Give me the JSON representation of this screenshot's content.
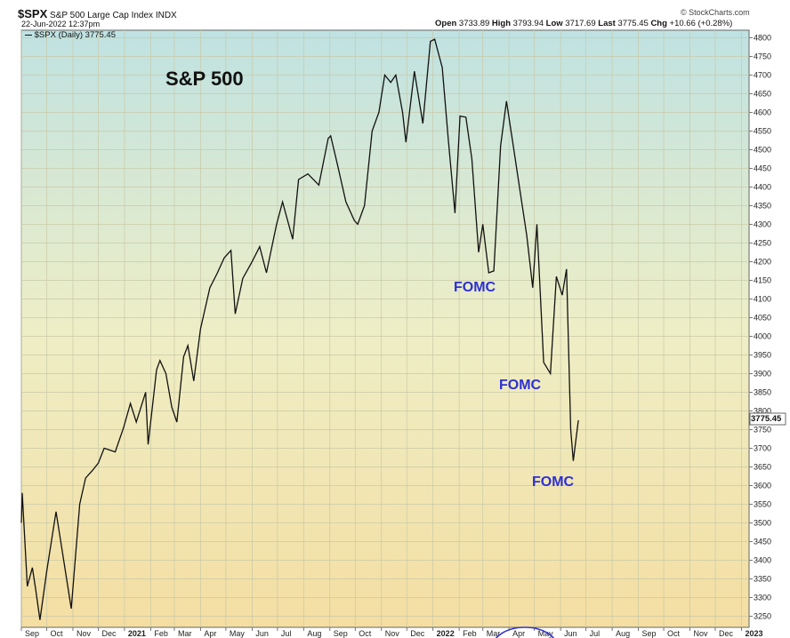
{
  "header": {
    "symbol": "$SPX",
    "name": "S&P 500 Large Cap Index",
    "exchange": "INDX",
    "date": "22-Jun-2022 12:37pm",
    "brand": "© StockCharts.com",
    "open_label": "Open",
    "open": "3733.89",
    "high_label": "High",
    "high": "3793.94",
    "low_label": "Low",
    "low": "3717.69",
    "last_label": "Last",
    "last": "3775.45",
    "chg_label": "Chg",
    "chg": "+10.66 (+0.28%)",
    "legend": "$SPX (Daily) 3775.45",
    "last_tag": "3775.45"
  },
  "chart_data": {
    "type": "line",
    "title": "S&P 500",
    "ylim": [
      3220,
      4820
    ],
    "y_ticks": [
      3250,
      3300,
      3350,
      3400,
      3450,
      3500,
      3550,
      3600,
      3650,
      3700,
      3750,
      3800,
      3850,
      3900,
      3950,
      4000,
      4050,
      4100,
      4150,
      4200,
      4250,
      4300,
      4350,
      4400,
      4450,
      4500,
      4550,
      4600,
      4650,
      4700,
      4750,
      4800
    ],
    "x_labels": [
      "Sep",
      "Oct",
      "Nov",
      "Dec",
      "2021",
      "Feb",
      "Mar",
      "Apr",
      "May",
      "Jun",
      "Jul",
      "Aug",
      "Sep",
      "Oct",
      "Nov",
      "Dec",
      "2022",
      "Feb",
      "Mar",
      "Apr",
      "May",
      "Jun",
      "Jul",
      "Aug",
      "Sep",
      "Oct",
      "Nov",
      "Dec",
      "2023"
    ],
    "x_start": "2020-09-01",
    "x_end": "2023-01-10",
    "x_label_dates": [
      "2020-09-01",
      "2020-10-01",
      "2020-11-01",
      "2020-12-01",
      "2021-01-01",
      "2021-02-01",
      "2021-03-01",
      "2021-04-01",
      "2021-05-01",
      "2021-06-01",
      "2021-07-01",
      "2021-08-01",
      "2021-09-01",
      "2021-10-01",
      "2021-11-01",
      "2021-12-01",
      "2022-01-01",
      "2022-02-01",
      "2022-03-01",
      "2022-04-01",
      "2022-05-01",
      "2022-06-01",
      "2022-07-01",
      "2022-08-01",
      "2022-09-01",
      "2022-10-01",
      "2022-11-01",
      "2022-12-01",
      "2023-01-01"
    ],
    "series": [
      {
        "values": [
          [
            "2020-09-01",
            3500
          ],
          [
            "2020-09-02",
            3580
          ],
          [
            "2020-09-08",
            3330
          ],
          [
            "2020-09-14",
            3380
          ],
          [
            "2020-09-18",
            3320
          ],
          [
            "2020-09-23",
            3240
          ],
          [
            "2020-10-01",
            3370
          ],
          [
            "2020-10-12",
            3530
          ],
          [
            "2020-10-19",
            3430
          ],
          [
            "2020-10-30",
            3270
          ],
          [
            "2020-11-09",
            3550
          ],
          [
            "2020-11-16",
            3620
          ],
          [
            "2020-11-24",
            3640
          ],
          [
            "2020-12-01",
            3660
          ],
          [
            "2020-12-08",
            3700
          ],
          [
            "2020-12-21",
            3690
          ],
          [
            "2020-12-31",
            3756
          ],
          [
            "2021-01-08",
            3820
          ],
          [
            "2021-01-15",
            3770
          ],
          [
            "2021-01-26",
            3850
          ],
          [
            "2021-01-29",
            3710
          ],
          [
            "2021-02-08",
            3910
          ],
          [
            "2021-02-12",
            3935
          ],
          [
            "2021-02-19",
            3900
          ],
          [
            "2021-02-26",
            3810
          ],
          [
            "2021-03-04",
            3770
          ],
          [
            "2021-03-12",
            3945
          ],
          [
            "2021-03-17",
            3975
          ],
          [
            "2021-03-24",
            3880
          ],
          [
            "2021-04-01",
            4020
          ],
          [
            "2021-04-12",
            4130
          ],
          [
            "2021-04-21",
            4170
          ],
          [
            "2021-04-29",
            4210
          ],
          [
            "2021-05-07",
            4230
          ],
          [
            "2021-05-12",
            4060
          ],
          [
            "2021-05-21",
            4155
          ],
          [
            "2021-06-01",
            4200
          ],
          [
            "2021-06-10",
            4240
          ],
          [
            "2021-06-18",
            4170
          ],
          [
            "2021-06-30",
            4300
          ],
          [
            "2021-07-07",
            4360
          ],
          [
            "2021-07-19",
            4260
          ],
          [
            "2021-07-26",
            4420
          ],
          [
            "2021-08-06",
            4435
          ],
          [
            "2021-08-19",
            4405
          ],
          [
            "2021-08-30",
            4530
          ],
          [
            "2021-09-02",
            4537
          ],
          [
            "2021-09-10",
            4460
          ],
          [
            "2021-09-20",
            4360
          ],
          [
            "2021-09-30",
            4310
          ],
          [
            "2021-10-04",
            4300
          ],
          [
            "2021-10-12",
            4350
          ],
          [
            "2021-10-21",
            4550
          ],
          [
            "2021-10-29",
            4600
          ],
          [
            "2021-11-05",
            4700
          ],
          [
            "2021-11-12",
            4680
          ],
          [
            "2021-11-18",
            4700
          ],
          [
            "2021-11-26",
            4600
          ],
          [
            "2021-11-30",
            4520
          ],
          [
            "2021-12-10",
            4710
          ],
          [
            "2021-12-20",
            4570
          ],
          [
            "2021-12-29",
            4790
          ],
          [
            "2022-01-03",
            4796
          ],
          [
            "2022-01-12",
            4720
          ],
          [
            "2022-01-19",
            4530
          ],
          [
            "2022-01-27",
            4330
          ],
          [
            "2022-02-02",
            4590
          ],
          [
            "2022-02-09",
            4587
          ],
          [
            "2022-02-16",
            4475
          ],
          [
            "2022-02-24",
            4225
          ],
          [
            "2022-03-01",
            4300
          ],
          [
            "2022-03-08",
            4170
          ],
          [
            "2022-03-14",
            4175
          ],
          [
            "2022-03-22",
            4510
          ],
          [
            "2022-03-29",
            4630
          ],
          [
            "2022-04-05",
            4525
          ],
          [
            "2022-04-14",
            4390
          ],
          [
            "2022-04-22",
            4270
          ],
          [
            "2022-04-29",
            4130
          ],
          [
            "2022-05-04",
            4300
          ],
          [
            "2022-05-12",
            3930
          ],
          [
            "2022-05-20",
            3900
          ],
          [
            "2022-05-27",
            4160
          ],
          [
            "2022-06-03",
            4110
          ],
          [
            "2022-06-08",
            4180
          ],
          [
            "2022-06-13",
            3750
          ],
          [
            "2022-06-16",
            3666
          ],
          [
            "2022-06-22",
            3775
          ]
        ]
      }
    ],
    "annotations": [
      "FOMC",
      "FOMC",
      "FOMC"
    ]
  }
}
